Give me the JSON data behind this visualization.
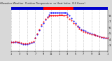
{
  "bg_color": "#d8d8d8",
  "plot_bg_color": "#ffffff",
  "grid_color": "#aaaaaa",
  "ylim": [
    20,
    90
  ],
  "xlim": [
    0,
    24
  ],
  "yticks": [
    30,
    40,
    50,
    60,
    70,
    80
  ],
  "ytick_labels": [
    "3",
    "4",
    "5",
    "6",
    "7",
    "8"
  ],
  "xticks": [
    0,
    2,
    4,
    6,
    8,
    10,
    12,
    14,
    16,
    18,
    20,
    22,
    24
  ],
  "xtick_labels": [
    "1",
    "3",
    "5",
    "7",
    "9",
    "11",
    "1",
    "3",
    "5",
    "7",
    "9",
    "11",
    "1"
  ],
  "temp_data_x": [
    0.0,
    0.5,
    1.0,
    1.5,
    2.0,
    2.5,
    3.0,
    3.5,
    4.0,
    4.5,
    5.0,
    5.5,
    6.0,
    6.5,
    7.0,
    7.5,
    8.0,
    8.5,
    9.0,
    9.5,
    10.0,
    10.5,
    11.0,
    11.5,
    12.0,
    12.5,
    13.0,
    14.0,
    14.5,
    15.0,
    15.5,
    16.0,
    16.5,
    17.0,
    17.5,
    18.0,
    18.5,
    19.0,
    19.5,
    20.0,
    20.5,
    21.0,
    21.5,
    22.0,
    22.5,
    23.0,
    23.5,
    24.0
  ],
  "temp_data_y": [
    36,
    36,
    37,
    36,
    35,
    34,
    33,
    33,
    33,
    34,
    35,
    37,
    43,
    50,
    57,
    65,
    70,
    74,
    77,
    79,
    81,
    81,
    81,
    81,
    82,
    82,
    81,
    78,
    75,
    72,
    68,
    65,
    61,
    58,
    55,
    53,
    52,
    51,
    50,
    49,
    48,
    47,
    46,
    45,
    44,
    44,
    43,
    43
  ],
  "heat_data_x": [
    0.0,
    0.5,
    1.0,
    1.5,
    2.0,
    2.5,
    3.0,
    3.5,
    4.0,
    4.5,
    5.0,
    5.5,
    6.0,
    6.5,
    7.0,
    7.5,
    8.0,
    8.5,
    9.0,
    9.5,
    10.0,
    10.5,
    11.0,
    11.5,
    12.0,
    12.5,
    13.0,
    13.5,
    14.0,
    14.5,
    15.0,
    15.5,
    16.0,
    16.5,
    17.0,
    17.5,
    18.0,
    18.5,
    19.0,
    19.5,
    20.0,
    20.5,
    21.0,
    21.5,
    22.0,
    22.5,
    23.0,
    23.5,
    24.0
  ],
  "heat_data_y": [
    35,
    35,
    36,
    35,
    34,
    33,
    32,
    32,
    32,
    33,
    34,
    36,
    42,
    49,
    56,
    63,
    68,
    73,
    78,
    82,
    85,
    85,
    85,
    85,
    85,
    85,
    85,
    85,
    83,
    80,
    76,
    71,
    68,
    63,
    60,
    57,
    55,
    54,
    52,
    51,
    50,
    49,
    47,
    46,
    45,
    44,
    43,
    42,
    42
  ],
  "temp_color": "#ff0000",
  "heat_color": "#0000ff",
  "plateau_y": 81,
  "plateau_x_start": 9.5,
  "plateau_x_end": 14.0,
  "bar_colors_left": "#0000cc",
  "bar_split": 8.0,
  "bar_colors_right": "#ff0000",
  "bar_right_end": 15.5,
  "bar_end_blue": "#0000cc"
}
